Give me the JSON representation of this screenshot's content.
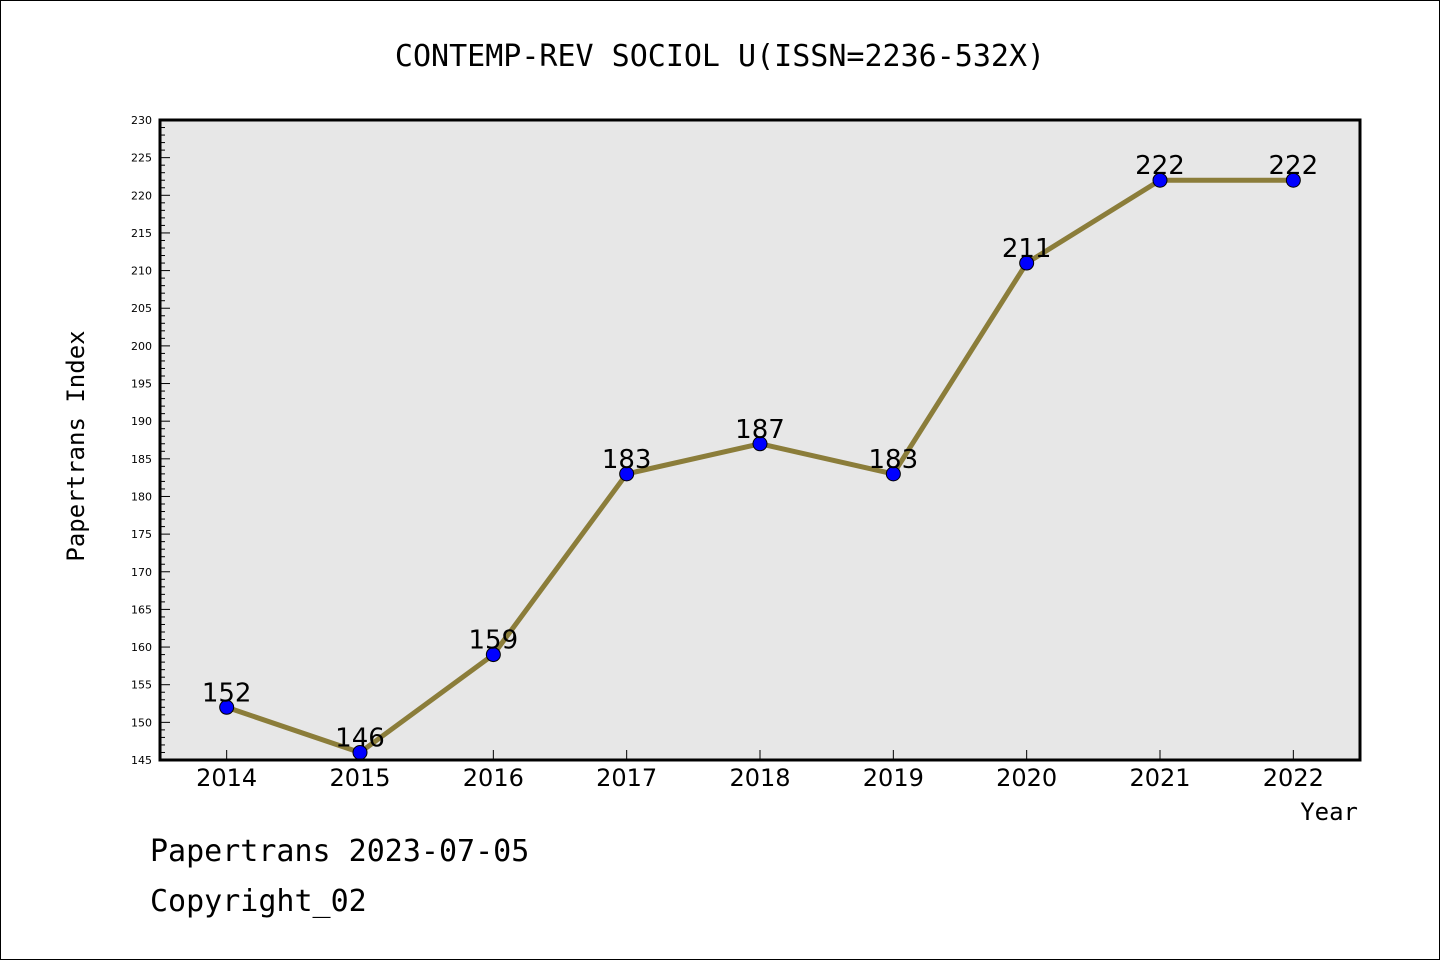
{
  "chart_data": {
    "type": "line",
    "title": "CONTEMP-REV SOCIOL U(ISSN=2236-532X)",
    "xlabel": "Year",
    "ylabel": "Papertrans Index",
    "categories": [
      "2014",
      "2015",
      "2016",
      "2017",
      "2018",
      "2019",
      "2020",
      "2021",
      "2022"
    ],
    "series": [
      {
        "values": [
          152,
          146,
          159,
          183,
          187,
          183,
          211,
          222,
          222
        ]
      }
    ],
    "ylim": [
      145,
      230
    ],
    "ytick_step": 5,
    "grid": false,
    "colors": {
      "line": "#8b7d3a",
      "marker": "#0000ff",
      "plot_bg": "#e7e7e7"
    }
  },
  "footer": {
    "line1": "Papertrans 2023-07-05",
    "line2": "Copyright_02"
  }
}
